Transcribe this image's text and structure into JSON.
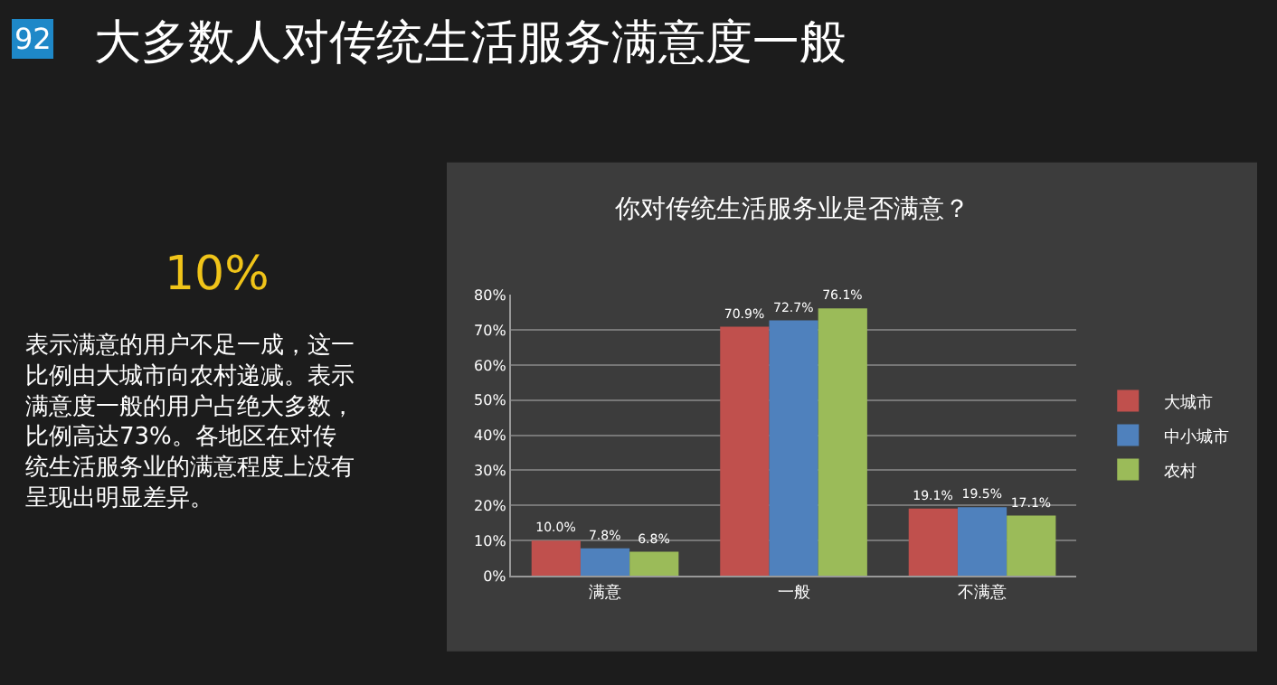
{
  "chart_data": {
    "type": "bar",
    "title": "大多数人对传统生活服务满意度一般",
    "subtitle": "你对传统生活服务业是否满意？",
    "annotations": [
      "92",
      "10%",
      "表示满意的用户不足一成，这一比例由大城市向农村递减。表示满意度一般的用户占绝大多数，比例高达73%。各地区在对传统生活服务业的满意程度上没有呈现出明显差异。"
    ],
    "categories": [
      "满意",
      "一般",
      "不满意"
    ],
    "series": [
      {
        "name": "大城市",
        "color": "#c0504d",
        "values": [
          10.0,
          70.9,
          19.1
        ],
        "value_labels": [
          "10.0%",
          "70.9%",
          "19.1%"
        ]
      },
      {
        "name": "中小城市",
        "color": "#4f81bd",
        "values": [
          7.8,
          72.7,
          19.5
        ],
        "value_labels": [
          "7.8%",
          "72.7%",
          "19.5%"
        ]
      },
      {
        "name": "农村",
        "color": "#9bbb59",
        "values": [
          6.8,
          76.1,
          17.1
        ],
        "value_labels": [
          "6.8%",
          "76.1%",
          "17.1%"
        ]
      }
    ],
    "ylim": [
      0,
      80
    ],
    "yticks": [
      {
        "value": 0,
        "label": "0%"
      },
      {
        "value": 10,
        "label": "10%"
      },
      {
        "value": 20,
        "label": "20%"
      },
      {
        "value": 30,
        "label": "30%"
      },
      {
        "value": 40,
        "label": "40%"
      },
      {
        "value": 50,
        "label": "50%"
      },
      {
        "value": 60,
        "label": "60%"
      },
      {
        "value": 70,
        "label": "70%"
      },
      {
        "value": 80,
        "label": "80%"
      }
    ],
    "grid": "y",
    "legend": "right"
  }
}
